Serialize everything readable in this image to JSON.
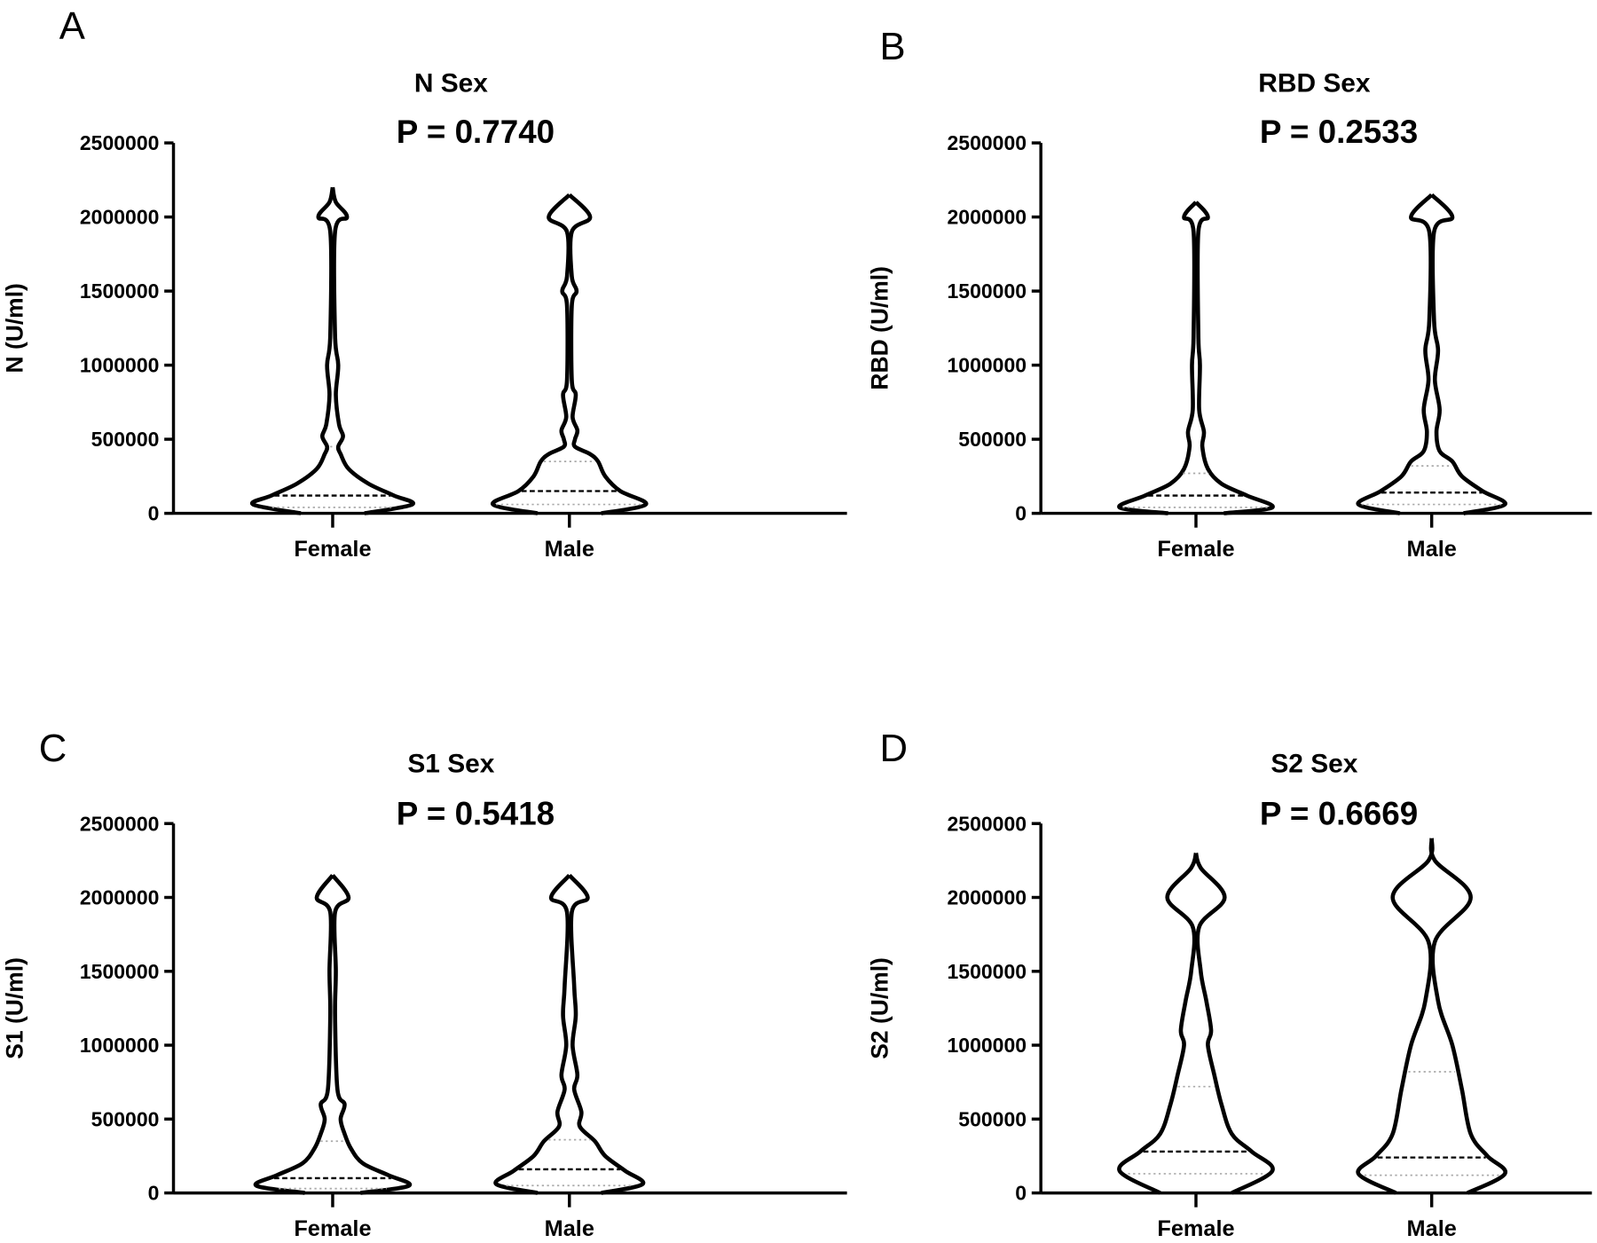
{
  "chart_data": [
    {
      "type": "violin",
      "panel_label": "A",
      "title": "N Sex",
      "p_value": "P = 0.7740",
      "ylabel": "N (U/ml)",
      "ylim": [
        0,
        2500000
      ],
      "yticks": [
        "0",
        "500000",
        "1000000",
        "1500000",
        "2000000",
        "2500000"
      ],
      "yticks_values": [
        0,
        500000,
        1000000,
        1500000,
        2000000,
        2500000
      ],
      "categories": [
        "Female",
        "Male"
      ],
      "series": [
        {
          "name": "Female",
          "median": 120000,
          "q1": 40000,
          "q3": 450000,
          "density": [
            [
              0,
              0.4
            ],
            [
              60000,
              1
            ],
            [
              120000,
              0.77
            ],
            [
              200000,
              0.45
            ],
            [
              300000,
              0.2
            ],
            [
              400000,
              0.1
            ],
            [
              450000,
              0.07
            ],
            [
              520000,
              0.13
            ],
            [
              600000,
              0.08
            ],
            [
              800000,
              0.04
            ],
            [
              1000000,
              0.07
            ],
            [
              1200000,
              0.03
            ],
            [
              1900000,
              0.03
            ],
            [
              2000000,
              0.18
            ],
            [
              2100000,
              0.04
            ],
            [
              2200000,
              0
            ]
          ]
        },
        {
          "name": "Male",
          "median": 150000,
          "q1": 60000,
          "q3": 350000,
          "density": [
            [
              0,
              0.4
            ],
            [
              60000,
              0.96
            ],
            [
              150000,
              0.64
            ],
            [
              250000,
              0.45
            ],
            [
              350000,
              0.36
            ],
            [
              400000,
              0.26
            ],
            [
              450000,
              0.07
            ],
            [
              500000,
              0.07
            ],
            [
              560000,
              0.1
            ],
            [
              650000,
              0.04
            ],
            [
              800000,
              0.08
            ],
            [
              900000,
              0.03
            ],
            [
              1400000,
              0.03
            ],
            [
              1500000,
              0.09
            ],
            [
              1600000,
              0.03
            ],
            [
              1900000,
              0.03
            ],
            [
              2000000,
              0.26
            ],
            [
              2150000,
              0
            ]
          ]
        }
      ]
    },
    {
      "type": "violin",
      "panel_label": "B",
      "title": "RBD Sex",
      "p_value": "P = 0.2533",
      "ylabel": "RBD (U/ml)",
      "ylim": [
        0,
        2500000
      ],
      "yticks": [
        "0",
        "500000",
        "1000000",
        "1500000",
        "2000000",
        "2500000"
      ],
      "yticks_values": [
        0,
        500000,
        1000000,
        1500000,
        2000000,
        2500000
      ],
      "categories": [
        "Female",
        "Male"
      ],
      "series": [
        {
          "name": "Female",
          "median": 120000,
          "q1": 40000,
          "q3": 270000,
          "density": [
            [
              0,
              0.35
            ],
            [
              40000,
              0.96
            ],
            [
              120000,
              0.64
            ],
            [
              200000,
              0.32
            ],
            [
              300000,
              0.15
            ],
            [
              450000,
              0.08
            ],
            [
              550000,
              0.1
            ],
            [
              700000,
              0.04
            ],
            [
              1000000,
              0.05
            ],
            [
              1200000,
              0.03
            ],
            [
              1900000,
              0.03
            ],
            [
              2000000,
              0.15
            ],
            [
              2100000,
              0
            ]
          ]
        },
        {
          "name": "Male",
          "median": 140000,
          "q1": 60000,
          "q3": 320000,
          "density": [
            [
              0,
              0.4
            ],
            [
              60000,
              0.92
            ],
            [
              150000,
              0.64
            ],
            [
              250000,
              0.38
            ],
            [
              350000,
              0.26
            ],
            [
              420000,
              0.1
            ],
            [
              550000,
              0.06
            ],
            [
              700000,
              0.1
            ],
            [
              900000,
              0.04
            ],
            [
              1100000,
              0.08
            ],
            [
              1300000,
              0.03
            ],
            [
              1900000,
              0.03
            ],
            [
              2000000,
              0.26
            ],
            [
              2150000,
              0
            ]
          ]
        }
      ]
    },
    {
      "type": "violin",
      "panel_label": "C",
      "title": "S1 Sex",
      "p_value": "P = 0.5418",
      "ylabel": "S1 (U/ml)",
      "ylim": [
        0,
        2500000
      ],
      "yticks": [
        "0",
        "500000",
        "1000000",
        "1500000",
        "2000000",
        "2500000"
      ],
      "yticks_values": [
        0,
        500000,
        1000000,
        1500000,
        2000000,
        2500000
      ],
      "categories": [
        "Female",
        "Male"
      ],
      "series": [
        {
          "name": "Female",
          "median": 100000,
          "q1": 30000,
          "q3": 350000,
          "density": [
            [
              0,
              0.35
            ],
            [
              50000,
              0.96
            ],
            [
              120000,
              0.7
            ],
            [
              200000,
              0.38
            ],
            [
              300000,
              0.23
            ],
            [
              400000,
              0.15
            ],
            [
              500000,
              0.1
            ],
            [
              600000,
              0.15
            ],
            [
              700000,
              0.06
            ],
            [
              1200000,
              0.03
            ],
            [
              1500000,
              0.04
            ],
            [
              1900000,
              0.03
            ],
            [
              2000000,
              0.2
            ],
            [
              2150000,
              0
            ]
          ]
        },
        {
          "name": "Male",
          "median": 160000,
          "q1": 50000,
          "q3": 360000,
          "density": [
            [
              0,
              0.4
            ],
            [
              60000,
              0.92
            ],
            [
              150000,
              0.7
            ],
            [
              250000,
              0.45
            ],
            [
              350000,
              0.32
            ],
            [
              450000,
              0.13
            ],
            [
              550000,
              0.15
            ],
            [
              700000,
              0.06
            ],
            [
              800000,
              0.1
            ],
            [
              1000000,
              0.04
            ],
            [
              1200000,
              0.08
            ],
            [
              1400000,
              0.06
            ],
            [
              1900000,
              0.03
            ],
            [
              2000000,
              0.23
            ],
            [
              2150000,
              0
            ]
          ]
        }
      ]
    },
    {
      "type": "violin",
      "panel_label": "D",
      "title": "S2 Sex",
      "p_value": "P = 0.6669",
      "ylabel": "S2 (U/ml)",
      "ylim": [
        0,
        2500000
      ],
      "yticks": [
        "0",
        "500000",
        "1000000",
        "1500000",
        "2000000",
        "2500000"
      ],
      "yticks_values": [
        0,
        500000,
        1000000,
        1500000,
        2000000,
        2500000
      ],
      "categories": [
        "Female",
        "Male"
      ],
      "series": [
        {
          "name": "Female",
          "median": 280000,
          "q1": 130000,
          "q3": 720000,
          "density": [
            [
              0,
              0.45
            ],
            [
              150000,
              0.96
            ],
            [
              280000,
              0.7
            ],
            [
              400000,
              0.45
            ],
            [
              600000,
              0.32
            ],
            [
              800000,
              0.23
            ],
            [
              1000000,
              0.15
            ],
            [
              1100000,
              0.19
            ],
            [
              1300000,
              0.13
            ],
            [
              1500000,
              0.06
            ],
            [
              1800000,
              0.04
            ],
            [
              2000000,
              0.36
            ],
            [
              2200000,
              0.06
            ],
            [
              2300000,
              0
            ]
          ]
        },
        {
          "name": "Male",
          "median": 240000,
          "q1": 120000,
          "q3": 820000,
          "density": [
            [
              0,
              0.45
            ],
            [
              130000,
              0.92
            ],
            [
              250000,
              0.7
            ],
            [
              400000,
              0.49
            ],
            [
              700000,
              0.38
            ],
            [
              1000000,
              0.26
            ],
            [
              1300000,
              0.08
            ],
            [
              1700000,
              0.04
            ],
            [
              2000000,
              0.49
            ],
            [
              2250000,
              0.04
            ],
            [
              2400000,
              0
            ]
          ]
        }
      ]
    }
  ]
}
